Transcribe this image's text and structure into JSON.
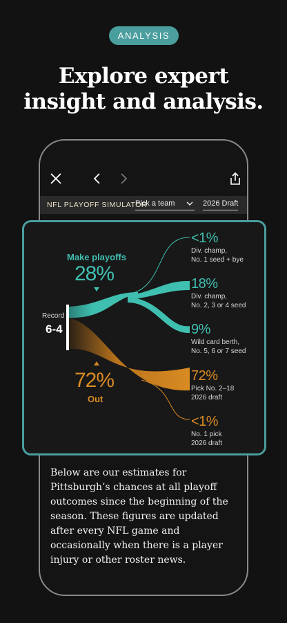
{
  "badge": "ANALYSIS",
  "headline": [
    "Explore expert",
    "insight and analysis."
  ],
  "toolbar": {
    "icons": [
      "close-icon",
      "chevron-left-icon",
      "chevron-right-icon",
      "share-icon"
    ]
  },
  "simulator": {
    "title": "NFL PLAYOFF SIMULATOR",
    "team_select": "Pick a team",
    "draft_select": "2026 Draft"
  },
  "chart": {
    "record_label": "Record",
    "record_value": "6-4",
    "make_label": "Make playoffs",
    "make_pct": "28%",
    "out_pct": "72%",
    "out_label": "Out",
    "outcomes": [
      {
        "pct": "<1%",
        "line1": "Div. champ,",
        "line2": "No. 1 seed + bye"
      },
      {
        "pct": "18%",
        "line1": "Div. champ,",
        "line2": "No. 2, 3 or 4 seed"
      },
      {
        "pct": "9%",
        "line1": "Wild card berth,",
        "line2": "No. 5, 6 or 7 seed"
      },
      {
        "pct": "72%",
        "line1": "Pick No. 2–18",
        "line2": "2026 draft"
      },
      {
        "pct": "<1%",
        "line1": "No. 1 pick",
        "line2": "2026 draft"
      }
    ],
    "colors": {
      "teal": "#3fbfb0",
      "orange": "#d98b23",
      "border": "#4a9e9e"
    }
  },
  "body_text": "Below are our estimates for Pittsburgh’s chances at all playoff outcomes since the beginning of the season. These figures are updated after every NFL game and occasionally when there is a player injury or other roster news."
}
